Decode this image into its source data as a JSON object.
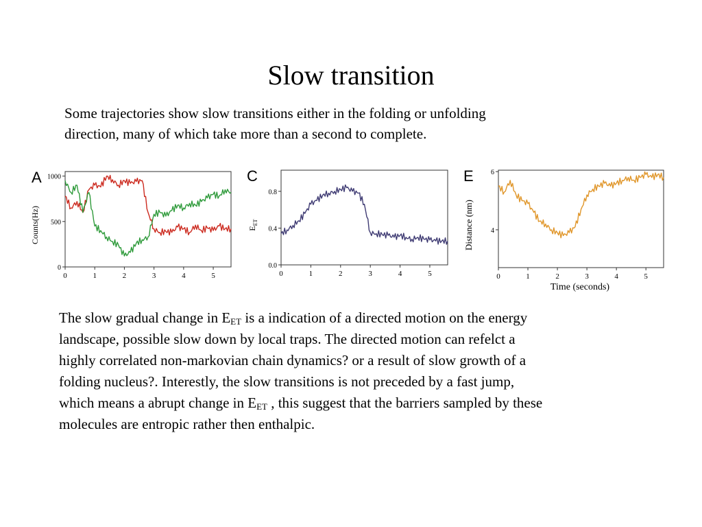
{
  "title": "Slow transition",
  "intro": [
    "Some trajectories show slow transitions either in the folding or unfolding",
    "direction, many of which take more than a second to complete."
  ],
  "body": {
    "line1_pre": "The slow gradual change in E",
    "sub_et": "ET",
    "line1_post": " is a indication of a directed motion on the energy",
    "line2": "landscape, possible slow down by local traps. The directed motion can refelct a",
    "line3": "highly correlated non-markovian chain dynamics? or a result of slow growth of a",
    "line4": "folding nucleus?. Interestly, the slow transitions is not preceded by a fast jump,",
    "line5_pre": "which means a abrupt change in E",
    "line5_post": " , this suggest that the barriers sampled by these",
    "line6": "molecules are entropic rather then enthalpic."
  },
  "chart_data": [
    {
      "type": "line",
      "panel": "A",
      "xlabel": "",
      "ylabel": "Counts(Hz)",
      "xlim": [
        0,
        5.6
      ],
      "ylim": [
        0,
        1050
      ],
      "xticks": [
        0,
        1,
        2,
        3,
        4,
        5
      ],
      "yticks": [
        0,
        500,
        1000
      ],
      "series": [
        {
          "color": "#cc2a1f",
          "x": [
            0,
            0.2,
            0.4,
            0.6,
            0.8,
            1.0,
            1.2,
            1.4,
            1.6,
            1.8,
            2.0,
            2.2,
            2.4,
            2.6,
            2.8,
            3.0,
            3.2,
            3.4,
            3.6,
            3.8,
            4.0,
            4.2,
            4.4,
            4.6,
            4.8,
            5.0,
            5.2,
            5.4,
            5.6
          ],
          "y": [
            780,
            650,
            720,
            600,
            850,
            900,
            880,
            1000,
            960,
            900,
            950,
            920,
            940,
            950,
            600,
            420,
            380,
            390,
            380,
            440,
            420,
            380,
            460,
            400,
            430,
            400,
            450,
            420,
            420
          ]
        },
        {
          "color": "#2e9a3a",
          "x": [
            0,
            0.2,
            0.4,
            0.6,
            0.8,
            1.0,
            1.2,
            1.4,
            1.6,
            1.8,
            2.0,
            2.2,
            2.4,
            2.6,
            2.8,
            3.0,
            3.2,
            3.4,
            3.6,
            3.8,
            4.0,
            4.2,
            4.4,
            4.6,
            4.8,
            5.0,
            5.2,
            5.4,
            5.6
          ],
          "y": [
            950,
            820,
            900,
            600,
            820,
            450,
            400,
            330,
            280,
            240,
            120,
            160,
            260,
            300,
            330,
            580,
            600,
            560,
            620,
            680,
            650,
            700,
            680,
            720,
            760,
            800,
            780,
            850,
            820
          ]
        }
      ]
    },
    {
      "type": "line",
      "panel": "C",
      "xlabel": "",
      "ylabel": "E",
      "ylabel_sub": "ET",
      "xlim": [
        0,
        5.6
      ],
      "ylim": [
        0,
        1.03
      ],
      "xticks": [
        0,
        1,
        2,
        3,
        4,
        5
      ],
      "yticks": [
        "0.0",
        "0.4",
        "0.8"
      ],
      "series": [
        {
          "color": "#3f3b73",
          "x": [
            0,
            0.2,
            0.4,
            0.6,
            0.8,
            1.0,
            1.2,
            1.4,
            1.6,
            1.8,
            2.0,
            2.2,
            2.4,
            2.6,
            2.8,
            3.0,
            3.2,
            3.4,
            3.6,
            3.8,
            4.0,
            4.2,
            4.4,
            4.6,
            4.8,
            5.0,
            5.2,
            5.4,
            5.6
          ],
          "y": [
            0.34,
            0.38,
            0.43,
            0.48,
            0.56,
            0.66,
            0.7,
            0.76,
            0.78,
            0.8,
            0.82,
            0.84,
            0.8,
            0.78,
            0.66,
            0.35,
            0.34,
            0.33,
            0.32,
            0.3,
            0.32,
            0.3,
            0.28,
            0.3,
            0.28,
            0.27,
            0.26,
            0.26,
            0.26
          ]
        }
      ]
    },
    {
      "type": "line",
      "panel": "E",
      "xlabel": "Time (seconds)",
      "ylabel": "Distance (nm)",
      "xlim": [
        0,
        5.6
      ],
      "ylim": [
        2.7,
        6.05
      ],
      "xticks": [
        0,
        1,
        2,
        3,
        4,
        5
      ],
      "yticks": [
        4,
        6
      ],
      "series": [
        {
          "color": "#e0962a",
          "x": [
            0,
            0.2,
            0.4,
            0.6,
            0.8,
            1.0,
            1.2,
            1.4,
            1.6,
            1.8,
            2.0,
            2.2,
            2.4,
            2.6,
            2.8,
            3.0,
            3.2,
            3.4,
            3.6,
            3.8,
            4.0,
            4.2,
            4.4,
            4.6,
            4.8,
            5.0,
            5.2,
            5.4,
            5.6
          ],
          "y": [
            5.5,
            5.3,
            5.7,
            5.2,
            5.0,
            4.9,
            4.6,
            4.3,
            4.2,
            4.0,
            3.9,
            3.8,
            3.9,
            4.1,
            4.7,
            5.2,
            5.4,
            5.5,
            5.6,
            5.5,
            5.6,
            5.7,
            5.8,
            5.7,
            5.8,
            5.9,
            5.8,
            5.9,
            5.8
          ]
        }
      ]
    }
  ]
}
